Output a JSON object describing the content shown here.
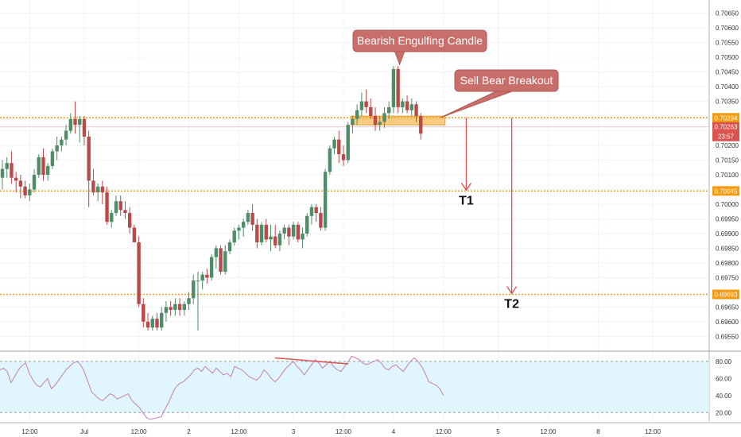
{
  "chart_data": [
    {
      "type": "candlestick",
      "title": "",
      "ylim": [
        0.69505,
        0.70695
      ],
      "yticks": [
        0.6955,
        0.696,
        0.6965,
        0.697,
        0.6975,
        0.698,
        0.6985,
        0.699,
        0.6995,
        0.7,
        0.7005,
        0.701,
        0.7015,
        0.702,
        0.7025,
        0.703,
        0.7035,
        0.704,
        0.7045,
        0.705,
        0.7055,
        0.706,
        0.7065
      ],
      "ytick_labels": [
        "0.69550",
        "0.69600",
        "0.69650",
        "0.69700",
        "0.69750",
        "0.69800",
        "0.69850",
        "0.69900",
        "0.69950",
        "0.70000",
        "0.70050",
        "0.70100",
        "0.70150",
        "0.70200",
        "0.70250",
        "0.70300",
        "0.70350",
        "0.70400",
        "0.70450",
        "0.70500",
        "0.70550",
        "0.70600",
        "0.70650"
      ],
      "x_labels": [
        {
          "bar": 6,
          "label": "12:00"
        },
        {
          "bar": 18,
          "label": "Jul"
        },
        {
          "bar": 30,
          "label": "12:00"
        },
        {
          "bar": 41,
          "label": "2"
        },
        {
          "bar": 52,
          "label": "12:00"
        },
        {
          "bar": 64,
          "label": "3"
        },
        {
          "bar": 75,
          "label": "12:00"
        },
        {
          "bar": 86,
          "label": "4"
        },
        {
          "bar": 97,
          "label": "12:00"
        },
        {
          "bar": 109,
          "label": "5"
        },
        {
          "bar": 120,
          "label": "12:00"
        },
        {
          "bar": 131,
          "label": "8"
        },
        {
          "bar": 143,
          "label": "12:00"
        }
      ],
      "colors": {
        "up": "#4f8c68",
        "down": "#b84a4a",
        "level": "#f39c12",
        "annotation": "#d9534f",
        "zone": "#f6c36a"
      },
      "candles": [
        [
          0.7009,
          0.7015,
          0.7005,
          0.7012
        ],
        [
          0.7012,
          0.7016,
          0.7009,
          0.7014
        ],
        [
          0.7014,
          0.7018,
          0.7007,
          0.7009
        ],
        [
          0.7009,
          0.7011,
          0.7004,
          0.7008
        ],
        [
          0.7008,
          0.701,
          0.7002,
          0.7006
        ],
        [
          0.7006,
          0.7008,
          0.7002,
          0.7003
        ],
        [
          0.7003,
          0.7007,
          0.7001,
          0.7005
        ],
        [
          0.7005,
          0.7012,
          0.7004,
          0.701
        ],
        [
          0.701,
          0.7017,
          0.7009,
          0.7016
        ],
        [
          0.7016,
          0.7019,
          0.7008,
          0.701
        ],
        [
          0.701,
          0.7014,
          0.7008,
          0.7013
        ],
        [
          0.7013,
          0.7019,
          0.7012,
          0.7018
        ],
        [
          0.7018,
          0.7023,
          0.7015,
          0.702
        ],
        [
          0.702,
          0.7023,
          0.7018,
          0.7022
        ],
        [
          0.7022,
          0.7027,
          0.702,
          0.7025
        ],
        [
          0.7025,
          0.7031,
          0.7024,
          0.7029
        ],
        [
          0.7029,
          0.7035,
          0.7024,
          0.7027
        ],
        [
          0.7027,
          0.703,
          0.7021,
          0.7029
        ],
        [
          0.7029,
          0.703,
          0.702,
          0.7023
        ],
        [
          0.7023,
          0.7025,
          0.6999,
          0.7008
        ],
        [
          0.7008,
          0.7012,
          0.7003,
          0.7004
        ],
        [
          0.7004,
          0.7007,
          0.7001,
          0.7006
        ],
        [
          0.7006,
          0.7008,
          0.7,
          0.7004
        ],
        [
          0.7004,
          0.7006,
          0.6993,
          0.6994
        ],
        [
          0.6994,
          0.6998,
          0.6992,
          0.6997
        ],
        [
          0.6997,
          0.7003,
          0.6996,
          0.7001
        ],
        [
          0.7001,
          0.7003,
          0.6996,
          0.6998
        ],
        [
          0.6998,
          0.7001,
          0.6995,
          0.6997
        ],
        [
          0.6997,
          0.6999,
          0.699,
          0.6992
        ],
        [
          0.6992,
          0.6993,
          0.6987,
          0.6987
        ],
        [
          0.6987,
          0.6989,
          0.6965,
          0.6966
        ],
        [
          0.6966,
          0.6968,
          0.6958,
          0.696
        ],
        [
          0.696,
          0.6963,
          0.6957,
          0.6958
        ],
        [
          0.6958,
          0.6962,
          0.6957,
          0.6961
        ],
        [
          0.6961,
          0.6963,
          0.6957,
          0.6958
        ],
        [
          0.6958,
          0.6965,
          0.6957,
          0.6963
        ],
        [
          0.6963,
          0.6967,
          0.696,
          0.6965
        ],
        [
          0.6965,
          0.6967,
          0.6962,
          0.6964
        ],
        [
          0.6964,
          0.6968,
          0.6962,
          0.6966
        ],
        [
          0.6966,
          0.6968,
          0.6962,
          0.6964
        ],
        [
          0.6964,
          0.6967,
          0.6962,
          0.6966
        ],
        [
          0.6966,
          0.697,
          0.6964,
          0.6968
        ],
        [
          0.6968,
          0.6976,
          0.6966,
          0.6974
        ],
        [
          0.6974,
          0.6977,
          0.6957,
          0.6974
        ],
        [
          0.6974,
          0.6977,
          0.6971,
          0.6976
        ],
        [
          0.6976,
          0.6978,
          0.6973,
          0.6975
        ],
        [
          0.6975,
          0.6983,
          0.6974,
          0.6982
        ],
        [
          0.6982,
          0.6986,
          0.6978,
          0.6985
        ],
        [
          0.6985,
          0.6986,
          0.6976,
          0.6977
        ],
        [
          0.6977,
          0.6986,
          0.6976,
          0.6984
        ],
        [
          0.6984,
          0.6988,
          0.6983,
          0.6987
        ],
        [
          0.6987,
          0.6992,
          0.6986,
          0.6991
        ],
        [
          0.6991,
          0.6993,
          0.6988,
          0.6992
        ],
        [
          0.6992,
          0.6995,
          0.6989,
          0.6994
        ],
        [
          0.6994,
          0.6998,
          0.6993,
          0.6997
        ],
        [
          0.6997,
          0.7,
          0.6991,
          0.6993
        ],
        [
          0.6993,
          0.6995,
          0.6985,
          0.6987
        ],
        [
          0.6987,
          0.6994,
          0.6986,
          0.6993
        ],
        [
          0.6993,
          0.6995,
          0.6987,
          0.6988
        ],
        [
          0.6988,
          0.6993,
          0.6984,
          0.6989
        ],
        [
          0.6989,
          0.6993,
          0.6985,
          0.6986
        ],
        [
          0.6986,
          0.6991,
          0.6984,
          0.699
        ],
        [
          0.699,
          0.6993,
          0.6988,
          0.6992
        ],
        [
          0.6992,
          0.6993,
          0.6986,
          0.6989
        ],
        [
          0.6989,
          0.6994,
          0.6988,
          0.6993
        ],
        [
          0.6993,
          0.6994,
          0.6987,
          0.6988
        ],
        [
          0.6988,
          0.6992,
          0.6985,
          0.699
        ],
        [
          0.699,
          0.6997,
          0.6989,
          0.6996
        ],
        [
          0.6996,
          0.7,
          0.6993,
          0.6999
        ],
        [
          0.6999,
          0.7,
          0.6994,
          0.6997
        ],
        [
          0.6997,
          0.6999,
          0.6991,
          0.6992
        ],
        [
          0.6992,
          0.7012,
          0.6991,
          0.7011
        ],
        [
          0.7011,
          0.702,
          0.701,
          0.7019
        ],
        [
          0.7019,
          0.7023,
          0.7017,
          0.7022
        ],
        [
          0.7022,
          0.7025,
          0.7014,
          0.7017
        ],
        [
          0.7017,
          0.702,
          0.7013,
          0.7015
        ],
        [
          0.7015,
          0.7028,
          0.7014,
          0.7027
        ],
        [
          0.7027,
          0.703,
          0.7024,
          0.7029
        ],
        [
          0.7029,
          0.7034,
          0.7027,
          0.7032
        ],
        [
          0.7032,
          0.7038,
          0.703,
          0.7035
        ],
        [
          0.7035,
          0.7039,
          0.7031,
          0.7033
        ],
        [
          0.7033,
          0.7036,
          0.7029,
          0.703
        ],
        [
          0.703,
          0.7033,
          0.7025,
          0.7027
        ],
        [
          0.7027,
          0.703,
          0.7025,
          0.7028
        ],
        [
          0.7028,
          0.7033,
          0.7026,
          0.7031
        ],
        [
          0.7031,
          0.7035,
          0.7029,
          0.7033
        ],
        [
          0.7033,
          0.7047,
          0.7031,
          0.7046
        ],
        [
          0.7046,
          0.7047,
          0.7031,
          0.7033
        ],
        [
          0.7033,
          0.7036,
          0.7031,
          0.7035
        ],
        [
          0.7035,
          0.7037,
          0.7031,
          0.7032
        ],
        [
          0.7032,
          0.7036,
          0.703,
          0.7034
        ],
        [
          0.7034,
          0.7035,
          0.7028,
          0.703
        ],
        [
          0.703,
          0.7031,
          0.7022,
          0.7024
        ]
      ],
      "levels": [
        {
          "price": 0.70294,
          "label": "0.70294"
        },
        {
          "price": 0.70045,
          "label": "0.70045"
        },
        {
          "price": 0.69693,
          "label": "0.69693"
        }
      ],
      "price_tag": {
        "price": 0.70263,
        "label": "0.70263",
        "sublabel": "23:57"
      },
      "zone": {
        "from_bar": 77,
        "to_bar": 97,
        "low": 0.7027,
        "high": 0.703
      },
      "annotations": [
        {
          "text": "Bearish Engulfing Candle",
          "bar": 87
        },
        {
          "text": "Sell Bear Breakout",
          "bar": 94
        }
      ],
      "targets": [
        {
          "label": "T1",
          "bar": 102,
          "from": 0.70294,
          "to": 0.70045
        },
        {
          "label": "T2",
          "bar": 112,
          "from": 0.70294,
          "to": 0.69693
        }
      ]
    },
    {
      "type": "line",
      "ylim": [
        10,
        90
      ],
      "yticks": [
        20,
        40,
        60,
        80
      ],
      "ytick_labels": [
        "20.00",
        "40.00",
        "60.00",
        "80.00"
      ],
      "band": [
        20,
        80
      ],
      "colors": {
        "line": "#c67bbf",
        "band": "#e0f6fc",
        "trendline": "#d9534f"
      },
      "values": [
        70,
        72,
        68,
        55,
        62,
        70,
        75,
        78,
        66,
        58,
        52,
        50,
        55,
        60,
        48,
        52,
        58,
        64,
        70,
        74,
        78,
        80,
        76,
        68,
        56,
        44,
        40,
        36,
        34,
        38,
        42,
        40,
        36,
        38,
        40,
        42,
        34,
        30,
        26,
        20,
        14,
        12,
        13,
        14,
        15,
        24,
        32,
        42,
        50,
        54,
        56,
        60,
        64,
        70,
        72,
        68,
        74,
        70,
        66,
        72,
        68,
        64,
        66,
        62,
        74,
        72,
        70,
        66,
        62,
        60,
        58,
        62,
        70,
        66,
        60,
        56,
        60,
        66,
        72,
        76,
        80,
        74,
        70,
        64,
        70,
        76,
        82,
        78,
        72,
        76,
        80,
        74,
        70,
        68,
        74,
        80,
        86,
        84,
        82,
        78,
        76,
        78,
        80,
        82,
        78,
        72,
        70,
        74,
        76,
        72,
        68,
        74,
        80,
        84,
        80,
        74,
        66,
        56,
        54,
        52,
        48,
        40
      ],
      "trendline": {
        "from_index": 75,
        "to_index": 95,
        "from_value": 84,
        "to_value": 77
      }
    }
  ]
}
